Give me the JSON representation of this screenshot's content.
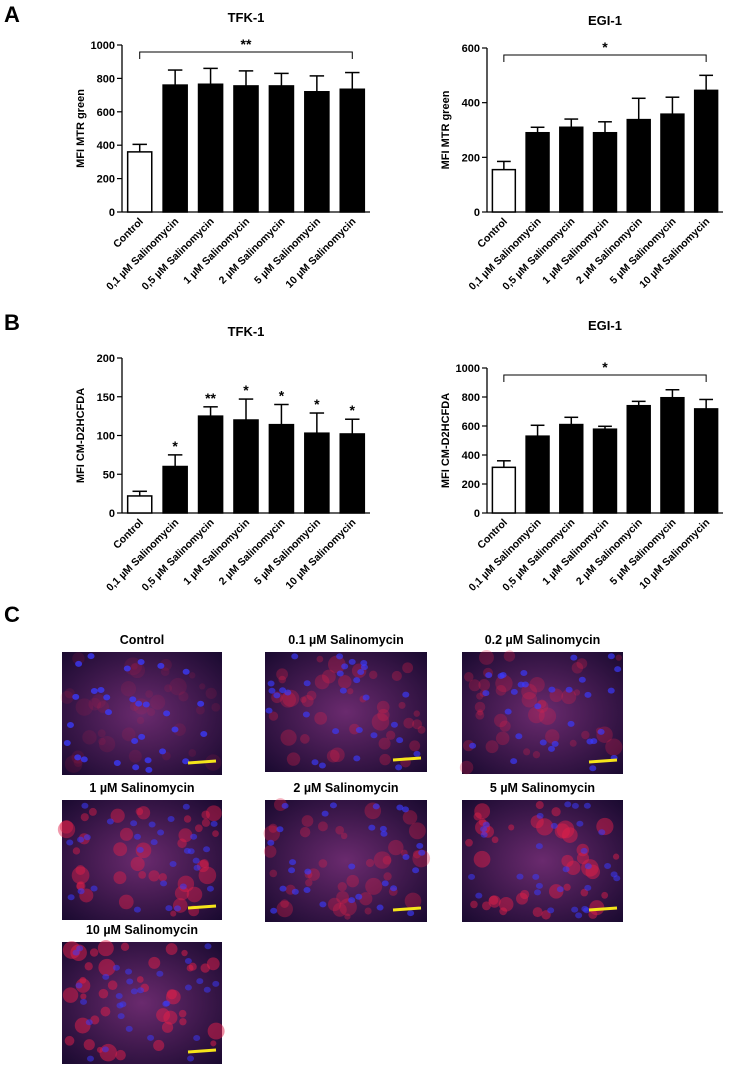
{
  "panels": [
    "A",
    "B",
    "C"
  ],
  "chart_data": [
    {
      "type": "bar",
      "title": "TFK-1",
      "ylabel": "MFI MTR green",
      "categories": [
        "Control",
        "0,1 µM Salinomycin",
        "0,5 µM Salinomycin",
        "1 µM Salinomycin",
        "2 µM Salinomycin",
        "5 µM Salinomycin",
        "10 µM Salinomycin"
      ],
      "values": [
        360,
        760,
        765,
        755,
        755,
        720,
        735
      ],
      "errors": [
        45,
        90,
        95,
        90,
        75,
        95,
        100
      ],
      "colors": [
        "#ffffff",
        "#000000",
        "#000000",
        "#000000",
        "#000000",
        "#000000",
        "#000000"
      ],
      "ylim": [
        0,
        1000
      ],
      "yticks": [
        0,
        200,
        400,
        600,
        800,
        1000
      ],
      "bracket": {
        "label": "**",
        "from": 0,
        "to": 6
      }
    },
    {
      "type": "bar",
      "title": "EGI-1",
      "ylabel": "MFI MTR green",
      "categories": [
        "Control",
        "0,1 µM Salinomycin",
        "0,5 µM Salinomycin",
        "1 µM Salinomycin",
        "2 µM Salinomycin",
        "5 µM Salinomycin",
        "10 µM Salinomycin"
      ],
      "values": [
        155,
        290,
        310,
        290,
        338,
        358,
        445
      ],
      "errors": [
        30,
        20,
        30,
        40,
        78,
        62,
        55
      ],
      "colors": [
        "#ffffff",
        "#000000",
        "#000000",
        "#000000",
        "#000000",
        "#000000",
        "#000000"
      ],
      "ylim": [
        0,
        600
      ],
      "yticks": [
        0,
        200,
        400,
        600
      ],
      "bracket": {
        "label": "*",
        "from": 0,
        "to": 6
      }
    },
    {
      "type": "bar",
      "title": "TFK-1",
      "ylabel": "MFI CM-D2HCFDA",
      "categories": [
        "Control",
        "0,1 µM Salinomycin",
        "0,5 µM Salinomycin",
        "1 µM Salinomycin",
        "2 µM Salinomycin",
        "5 µM Salinomycin",
        "10 µM Salinomycin"
      ],
      "values": [
        22,
        60,
        125,
        120,
        114,
        103,
        102
      ],
      "errors": [
        6,
        15,
        12,
        27,
        26,
        26,
        19
      ],
      "colors": [
        "#ffffff",
        "#000000",
        "#000000",
        "#000000",
        "#000000",
        "#000000",
        "#000000"
      ],
      "ylim": [
        0,
        200
      ],
      "yticks": [
        0,
        50,
        100,
        150,
        200
      ],
      "bar_annotations": [
        null,
        "*",
        "**",
        "*",
        "*",
        "*",
        "*"
      ]
    },
    {
      "type": "bar",
      "title": "EGI-1",
      "ylabel": "MFI CM-D2HCFDA",
      "categories": [
        "Control",
        "0,1 µM Salinomycin",
        "0,5 µM Salinomycin",
        "1 µM Salinomycin",
        "2 µM Salinomycin",
        "5 µM Salinomycin",
        "10 µM Salinomycin"
      ],
      "values": [
        315,
        530,
        610,
        578,
        740,
        795,
        718
      ],
      "errors": [
        45,
        75,
        50,
        20,
        30,
        55,
        65
      ],
      "colors": [
        "#ffffff",
        "#000000",
        "#000000",
        "#000000",
        "#000000",
        "#000000",
        "#000000"
      ],
      "ylim": [
        0,
        1000
      ],
      "yticks": [
        0,
        200,
        400,
        600,
        800,
        1000
      ],
      "bracket": {
        "label": "*",
        "from": 0,
        "to": 6
      }
    }
  ],
  "images": [
    {
      "title": "Control"
    },
    {
      "title": "0.1 µM Salinomycin"
    },
    {
      "title": "0.2 µM Salinomycin"
    },
    {
      "title": "1 µM Salinomycin"
    },
    {
      "title": "2 µM Salinomycin"
    },
    {
      "title": "5 µM Salinomycin"
    },
    {
      "title": "10 µM Salinomycin"
    }
  ]
}
